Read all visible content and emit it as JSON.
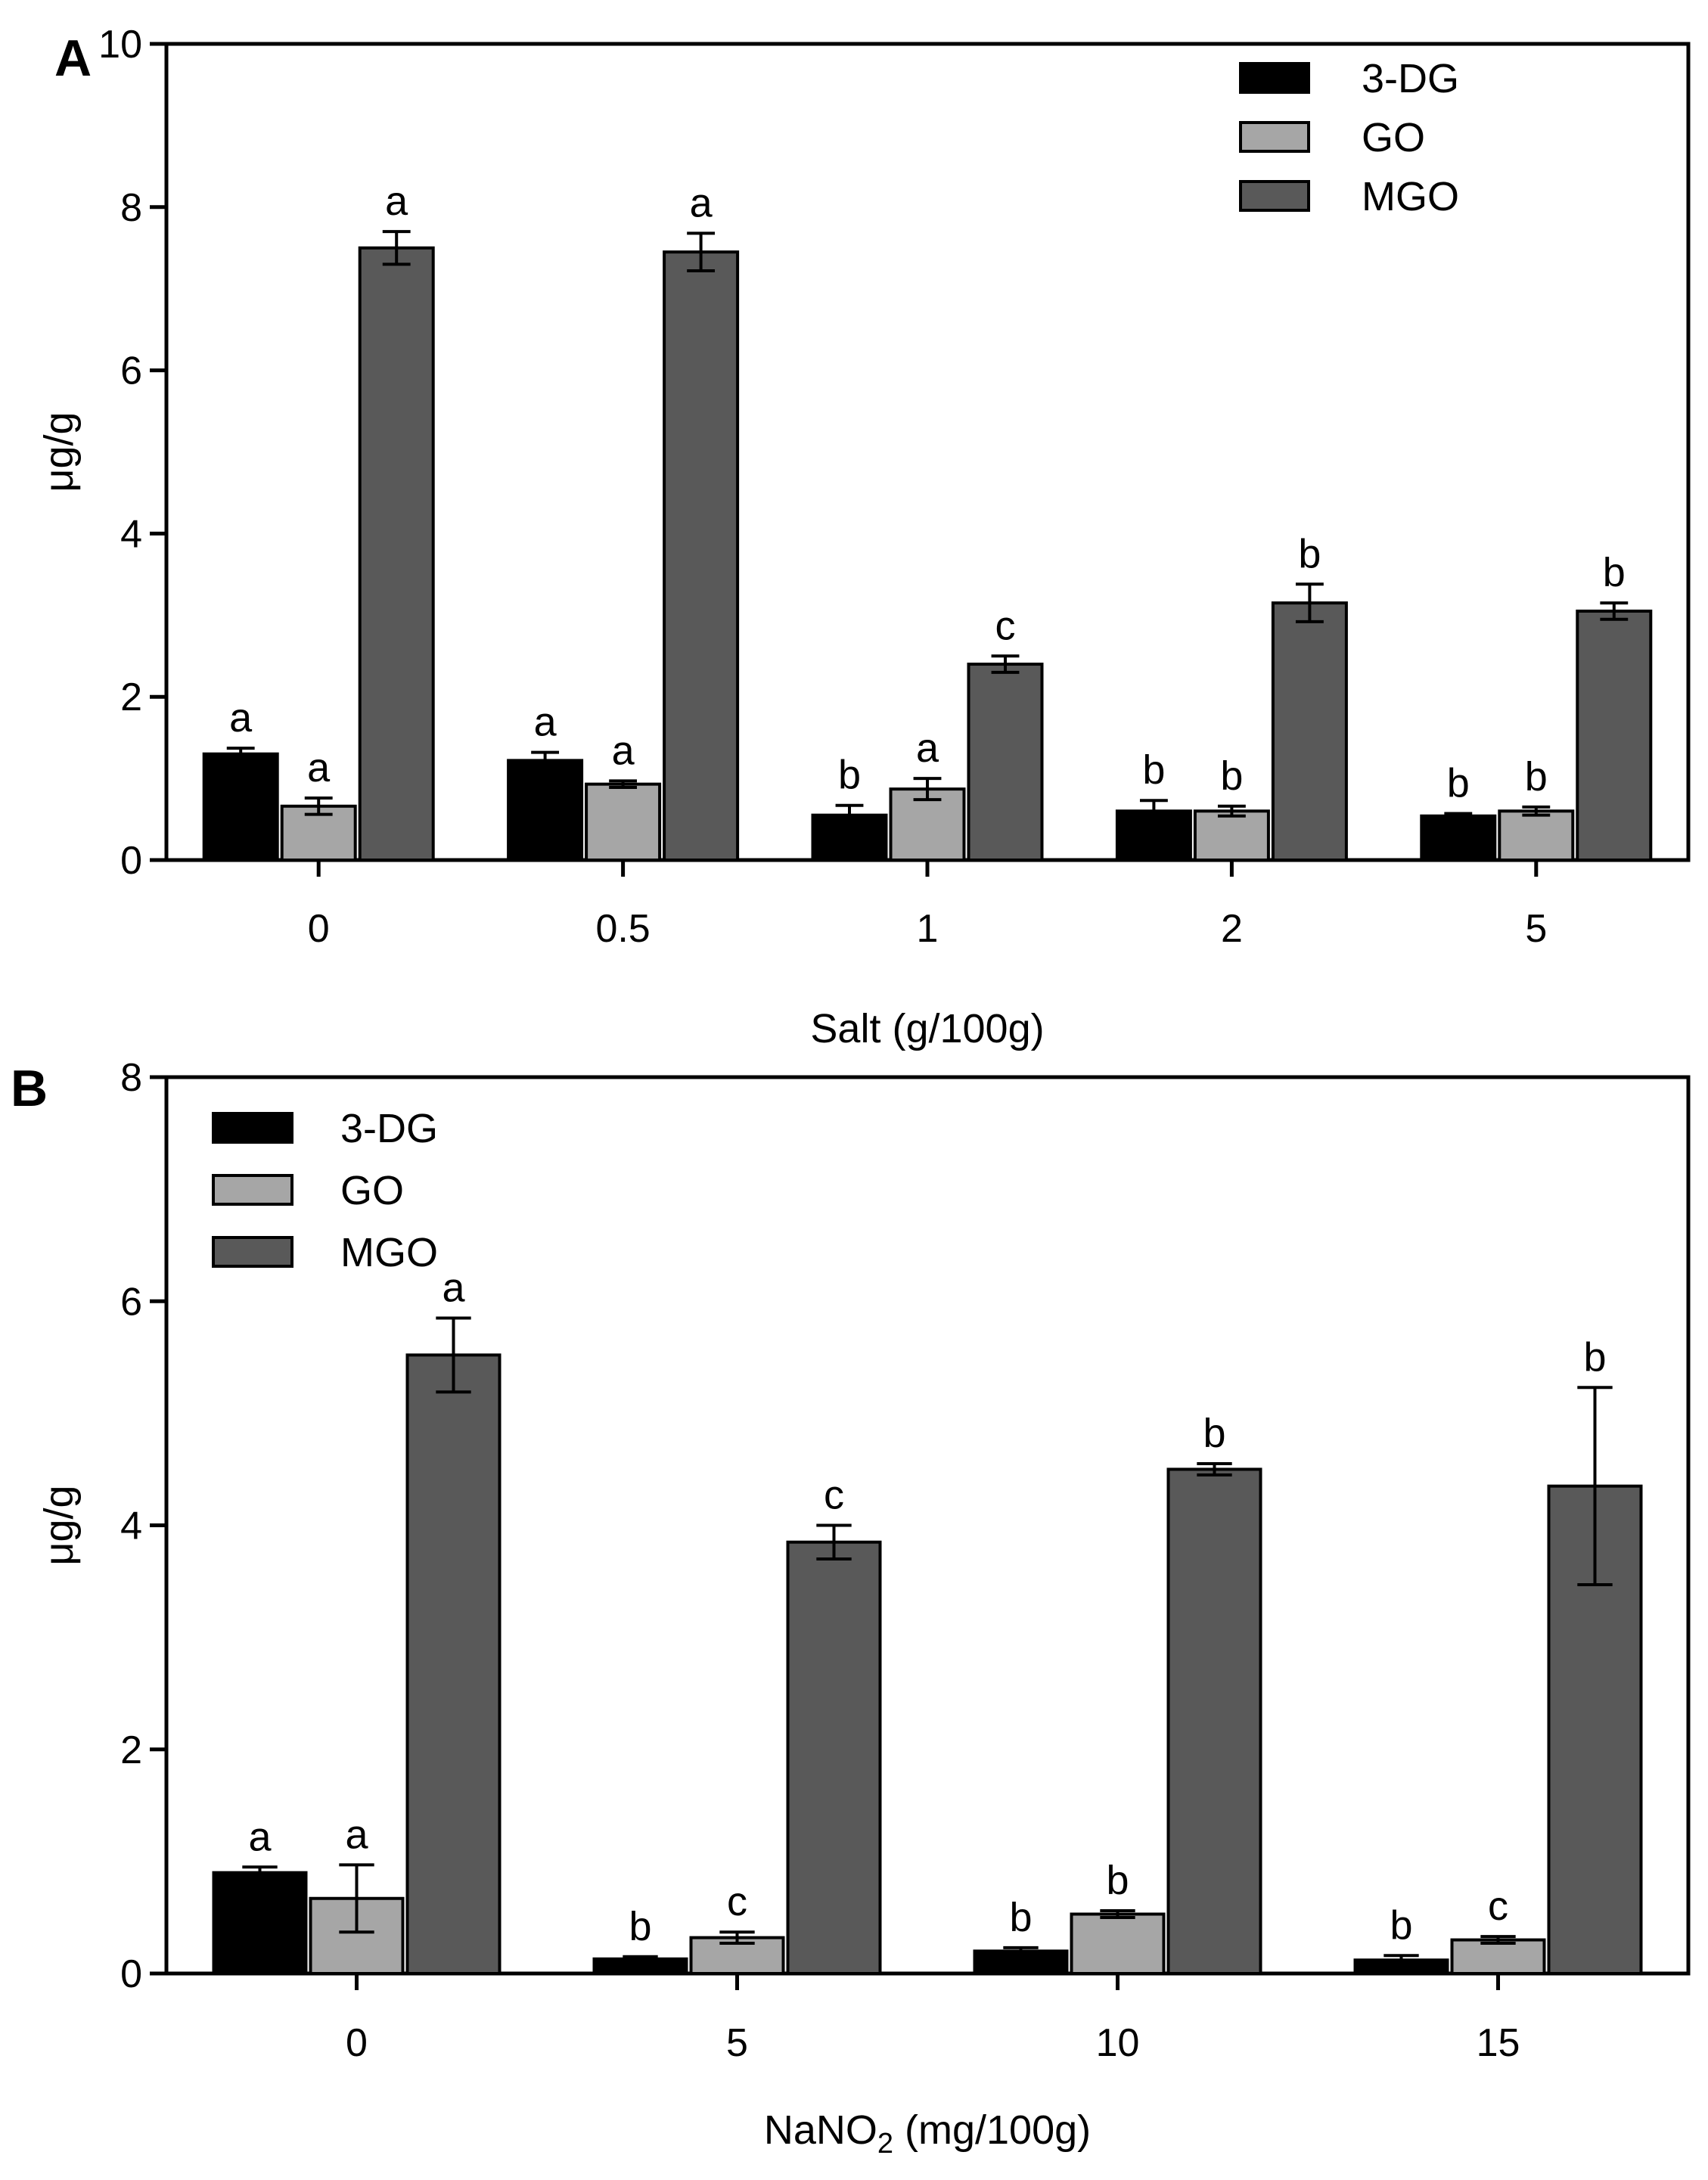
{
  "chart_data": [
    {
      "type": "bar",
      "panel_label": "A",
      "title": "",
      "xlabel": "Salt (g/100g)",
      "xlabel_sub": "",
      "xlabel_suffix": "",
      "ylabel": "μg/g",
      "ylim": [
        0,
        10
      ],
      "yticks": [
        0,
        2,
        4,
        6,
        8,
        10
      ],
      "grid": false,
      "legend_position": "top-right",
      "categories": [
        "0",
        "0.5",
        "1",
        "2",
        "5"
      ],
      "series": [
        {
          "name": "3-DG",
          "color": "#000000",
          "values": [
            1.3,
            1.22,
            0.55,
            0.6,
            0.54
          ],
          "errors": [
            0.07,
            0.1,
            0.12,
            0.13,
            0.03
          ],
          "letters": [
            "a",
            "a",
            "b",
            "b",
            "b"
          ]
        },
        {
          "name": "GO",
          "color": "#a6a6a6",
          "values": [
            0.66,
            0.93,
            0.87,
            0.6,
            0.6
          ],
          "errors": [
            0.1,
            0.04,
            0.13,
            0.06,
            0.05
          ],
          "letters": [
            "a",
            "a",
            "a",
            "b",
            "b"
          ]
        },
        {
          "name": "MGO",
          "color": "#595959",
          "values": [
            7.5,
            7.45,
            2.4,
            3.15,
            3.05
          ],
          "errors": [
            0.2,
            0.23,
            0.1,
            0.23,
            0.1
          ],
          "letters": [
            "a",
            "a",
            "c",
            "b",
            "b"
          ]
        }
      ]
    },
    {
      "type": "bar",
      "panel_label": "B",
      "title": "",
      "xlabel": "NaNO",
      "xlabel_sub": "2",
      "xlabel_suffix": " (mg/100g)",
      "ylabel": "μg/g",
      "ylim": [
        0,
        8
      ],
      "yticks": [
        0,
        2,
        4,
        6,
        8
      ],
      "grid": false,
      "legend_position": "top-left",
      "categories": [
        "0",
        "5",
        "10",
        "15"
      ],
      "series": [
        {
          "name": "3-DG",
          "color": "#000000",
          "values": [
            0.9,
            0.13,
            0.2,
            0.12
          ],
          "errors": [
            0.05,
            0.02,
            0.03,
            0.04
          ],
          "letters": [
            "a",
            "b",
            "b",
            "b"
          ]
        },
        {
          "name": "GO",
          "color": "#a6a6a6",
          "values": [
            0.67,
            0.32,
            0.53,
            0.3
          ],
          "errors": [
            0.3,
            0.05,
            0.03,
            0.03
          ],
          "letters": [
            "a",
            "c",
            "b",
            "c"
          ]
        },
        {
          "name": "MGO",
          "color": "#595959",
          "values": [
            5.52,
            3.85,
            4.5,
            4.35
          ],
          "errors": [
            0.33,
            0.15,
            0.05,
            0.88
          ],
          "letters": [
            "a",
            "c",
            "b",
            "b"
          ]
        }
      ]
    }
  ]
}
